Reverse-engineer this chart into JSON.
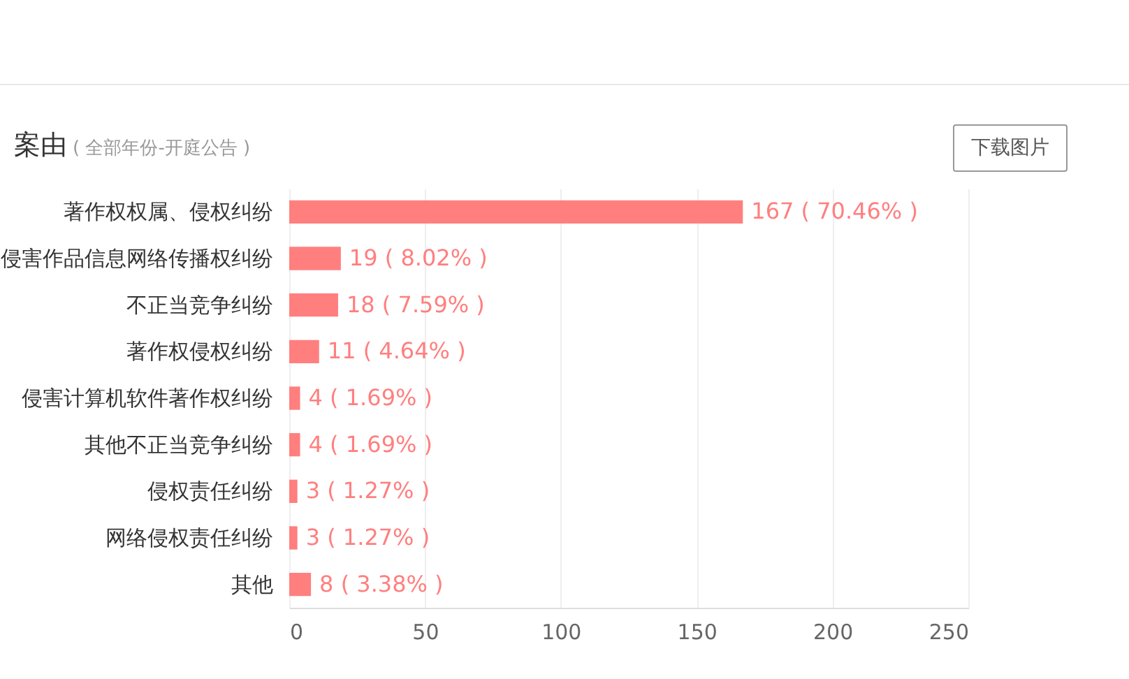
{
  "chart_data": {
    "type": "bar",
    "orientation": "horizontal",
    "title": "案由",
    "subtitle": "( 全部年份-开庭公告 )",
    "annotations": [
      "下载图片"
    ],
    "categories": [
      "著作权权属、侵权纠纷",
      "侵害作品信息网络传播权纠纷",
      "不正当竞争纠纷",
      "著作权侵权纠纷",
      "侵害计算机软件著作权纠纷",
      "其他不正当竞争纠纷",
      "侵权责任纠纷",
      "网络侵权责任纠纷",
      "其他"
    ],
    "values": [
      167,
      19,
      18,
      11,
      4,
      4,
      3,
      3,
      8
    ],
    "value_labels": [
      "167 ( 70.46% )",
      "19 ( 8.02% )",
      "18 ( 7.59% )",
      "11 ( 4.64% )",
      "4 ( 1.69% )",
      "4 ( 1.69% )",
      "3 ( 1.27% )",
      "3 ( 1.27% )",
      "8 ( 3.38% )"
    ],
    "color": "#ff7f7f",
    "xlim": [
      0,
      250
    ],
    "xticks": [
      0,
      50,
      100,
      150,
      200,
      250
    ],
    "grid": "x"
  }
}
